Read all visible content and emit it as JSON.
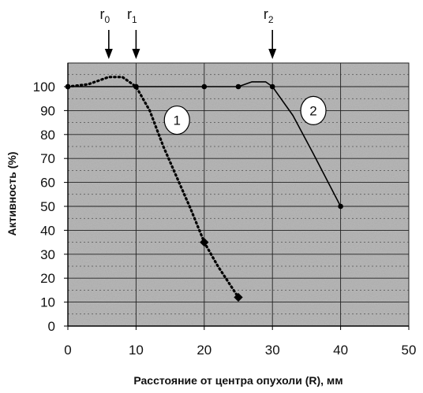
{
  "chart_data": {
    "type": "line",
    "xlabel": "Расстояние от центра опухоли (R), мм",
    "ylabel": "Активность  (%)",
    "xlim": [
      0,
      50
    ],
    "ylim": [
      0,
      100
    ],
    "x_ticks": [
      0,
      10,
      20,
      30,
      40,
      50
    ],
    "y_ticks": [
      0,
      10,
      20,
      30,
      40,
      50,
      60,
      70,
      80,
      90,
      100
    ],
    "grid": true,
    "background": "#b9b9b9",
    "series": [
      {
        "name": "1",
        "style": "dotted",
        "points": [
          [
            0,
            100
          ],
          [
            10,
            100
          ],
          [
            20,
            35
          ],
          [
            25,
            12
          ]
        ],
        "curve": [
          [
            0,
            100
          ],
          [
            3,
            101
          ],
          [
            6,
            104
          ],
          [
            8,
            104
          ],
          [
            10,
            100
          ],
          [
            12,
            90
          ],
          [
            14,
            75
          ],
          [
            16,
            62
          ],
          [
            18,
            49
          ],
          [
            20,
            35
          ],
          [
            22,
            25
          ],
          [
            25,
            12
          ]
        ]
      },
      {
        "name": "2",
        "style": "solid",
        "points": [
          [
            0,
            100
          ],
          [
            10,
            100
          ],
          [
            20,
            100
          ],
          [
            25,
            100
          ],
          [
            30,
            100
          ],
          [
            40,
            50
          ]
        ],
        "curve": [
          [
            0,
            100
          ],
          [
            10,
            100
          ],
          [
            20,
            100
          ],
          [
            25,
            100
          ],
          [
            27,
            102
          ],
          [
            29,
            102
          ],
          [
            30,
            100
          ],
          [
            33,
            88
          ],
          [
            36,
            72
          ],
          [
            40,
            50
          ]
        ]
      }
    ],
    "markers": [
      {
        "name": "r",
        "sub": "0",
        "x": 6
      },
      {
        "name": "r",
        "sub": "1",
        "x": 10
      },
      {
        "name": "r",
        "sub": "2",
        "x": 30
      }
    ],
    "curve_labels": [
      {
        "text": "1",
        "x": 16,
        "y": 86
      },
      {
        "text": "2",
        "x": 36,
        "y": 90
      }
    ]
  }
}
